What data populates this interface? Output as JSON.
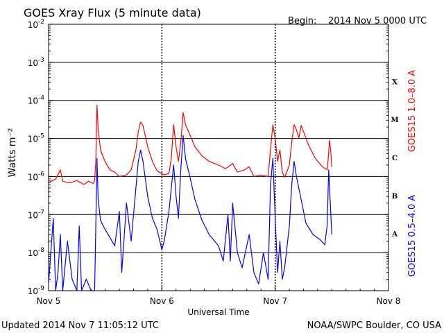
{
  "header": {
    "title": "GOES Xray Flux (5 minute data)",
    "begin_label": "Begin:",
    "begin_value": "2014 Nov 5 0000 UTC"
  },
  "footer": {
    "updated": "Updated 2014 Nov  7 11:05:12 UTC",
    "source": "NOAA/SWPC Boulder, CO USA"
  },
  "colors": {
    "short_channel": "#0000ff",
    "long_channel": "#ff0000",
    "axes": "#000000",
    "background": "#ffffff"
  },
  "chart_data": {
    "type": "line",
    "title": "GOES Xray Flux (5 minute data)",
    "xlabel": "Universal Time",
    "ylabel": "Watts m⁻²",
    "y_scale": "log",
    "ylim": [
      1e-09,
      0.01
    ],
    "xlim": [
      "2014-11-05 00:00",
      "2014-11-08 00:00"
    ],
    "x_ticks": [
      {
        "x": "2014-11-05 00:00",
        "label": "Nov 5"
      },
      {
        "x": "2014-11-06 00:00",
        "label": "Nov 6"
      },
      {
        "x": "2014-11-07 00:00",
        "label": "Nov 7"
      },
      {
        "x": "2014-11-08 00:00",
        "label": "Nov 8"
      }
    ],
    "y_ticks": [
      {
        "value": 1e-09,
        "base": "10",
        "exp": "-9"
      },
      {
        "value": 1e-08,
        "base": "10",
        "exp": "-8"
      },
      {
        "value": 1e-07,
        "base": "10",
        "exp": "-7"
      },
      {
        "value": 1e-06,
        "base": "10",
        "exp": "-6"
      },
      {
        "value": 1e-05,
        "base": "10",
        "exp": "-5"
      },
      {
        "value": 0.0001,
        "base": "10",
        "exp": "-4"
      },
      {
        "value": 0.001,
        "base": "10",
        "exp": "-3"
      },
      {
        "value": 0.01,
        "base": "10",
        "exp": "-2"
      }
    ],
    "flare_classes": [
      {
        "label": "X",
        "from": 0.0001,
        "to": 0.001
      },
      {
        "label": "M",
        "from": 1e-05,
        "to": 0.0001
      },
      {
        "label": "C",
        "from": 1e-06,
        "to": 1e-05
      },
      {
        "label": "B",
        "from": 1e-07,
        "to": 1e-06
      },
      {
        "label": "A",
        "from": 1e-08,
        "to": 1e-07
      }
    ],
    "grid": "horizontal at each decade 1e-8 to 1e-3; dotted vertical at each day boundary",
    "series": [
      {
        "name": "GOES15 1.0–8.0 A",
        "color": "#ff0000",
        "points": [
          [
            "2014-11-05 00:00",
            7e-07
          ],
          [
            "2014-11-05 01:30",
            8.5e-07
          ],
          [
            "2014-11-05 02:30",
            1.5e-06
          ],
          [
            "2014-11-05 03:00",
            7.5e-07
          ],
          [
            "2014-11-05 04:30",
            6.8e-07
          ],
          [
            "2014-11-05 06:00",
            7.8e-07
          ],
          [
            "2014-11-05 07:30",
            6.2e-07
          ],
          [
            "2014-11-05 08:30",
            7.5e-07
          ],
          [
            "2014-11-05 09:30",
            6.5e-07
          ],
          [
            "2014-11-05 09:45",
            8e-07
          ],
          [
            "2014-11-05 10:00",
            2.5e-06
          ],
          [
            "2014-11-05 10:15",
            7.5e-05
          ],
          [
            "2014-11-05 10:30",
            1.8e-05
          ],
          [
            "2014-11-05 11:00",
            5e-06
          ],
          [
            "2014-11-05 12:00",
            2.4e-06
          ],
          [
            "2014-11-05 13:00",
            1.5e-06
          ],
          [
            "2014-11-05 14:00",
            1.3e-06
          ],
          [
            "2014-11-05 15:00",
            1e-06
          ],
          [
            "2014-11-05 16:30",
            1.1e-06
          ],
          [
            "2014-11-05 17:30",
            1.5e-06
          ],
          [
            "2014-11-05 18:30",
            5e-06
          ],
          [
            "2014-11-05 19:00",
            1.5e-05
          ],
          [
            "2014-11-05 19:30",
            2.7e-05
          ],
          [
            "2014-11-05 20:00",
            2.2e-05
          ],
          [
            "2014-11-05 21:00",
            6e-06
          ],
          [
            "2014-11-05 22:00",
            2.5e-06
          ],
          [
            "2014-11-05 23:00",
            1.4e-06
          ],
          [
            "2014-11-06 00:30",
            1.1e-06
          ],
          [
            "2014-11-06 01:30",
            1.2e-06
          ],
          [
            "2014-11-06 02:00",
            3e-06
          ],
          [
            "2014-11-06 02:30",
            2.3e-05
          ],
          [
            "2014-11-06 03:00",
            6e-06
          ],
          [
            "2014-11-06 03:30",
            2.5e-06
          ],
          [
            "2014-11-06 04:00",
            8e-06
          ],
          [
            "2014-11-06 04:30",
            4.8e-05
          ],
          [
            "2014-11-06 05:00",
            2.3e-05
          ],
          [
            "2014-11-06 06:00",
            1.2e-05
          ],
          [
            "2014-11-06 07:00",
            6e-06
          ],
          [
            "2014-11-06 08:30",
            3.5e-06
          ],
          [
            "2014-11-06 10:00",
            2.5e-06
          ],
          [
            "2014-11-06 12:00",
            2e-06
          ],
          [
            "2014-11-06 13:30",
            1.6e-06
          ],
          [
            "2014-11-06 15:00",
            2.2e-06
          ],
          [
            "2014-11-06 16:00",
            1.3e-06
          ],
          [
            "2014-11-06 17:30",
            1.5e-06
          ],
          [
            "2014-11-06 18:30",
            1.8e-06
          ],
          [
            "2014-11-06 19:30",
            1e-06
          ],
          [
            "2014-11-06 21:00",
            1.1e-06
          ],
          [
            "2014-11-06 22:30",
            1e-06
          ],
          [
            "2014-11-06 23:00",
            5e-06
          ],
          [
            "2014-11-06 23:30",
            2.3e-05
          ],
          [
            "2014-11-07 00:00",
            1e-05
          ],
          [
            "2014-11-07 00:30",
            2.5e-06
          ],
          [
            "2014-11-07 01:00",
            5e-06
          ],
          [
            "2014-11-07 01:30",
            1.3e-06
          ],
          [
            "2014-11-07 02:00",
            9.5e-07
          ],
          [
            "2014-11-07 03:00",
            2e-06
          ],
          [
            "2014-11-07 03:30",
            8e-06
          ],
          [
            "2014-11-07 04:00",
            2.3e-05
          ],
          [
            "2014-11-07 04:30",
            1.7e-05
          ],
          [
            "2014-11-07 05:00",
            1e-05
          ],
          [
            "2014-11-07 05:30",
            2.2e-05
          ],
          [
            "2014-11-07 06:00",
            1.5e-05
          ],
          [
            "2014-11-07 07:00",
            7e-06
          ],
          [
            "2014-11-07 08:30",
            3e-06
          ],
          [
            "2014-11-07 10:00",
            1.8e-06
          ],
          [
            "2014-11-07 11:00",
            1.5e-06
          ],
          [
            "2014-11-07 11:15",
            3e-06
          ],
          [
            "2014-11-07 11:30",
            9e-06
          ],
          [
            "2014-11-07 11:45",
            5e-06
          ],
          [
            "2014-11-07 12:00",
            1.8e-06
          ]
        ]
      },
      {
        "name": "GOES15 0.5–4.0 A",
        "color": "#0000ff",
        "points": [
          [
            "2014-11-05 00:00",
            1.5e-09
          ],
          [
            "2014-11-05 01:00",
            8e-08
          ],
          [
            "2014-11-05 01:30",
            1e-09
          ],
          [
            "2014-11-05 02:00",
            3e-09
          ],
          [
            "2014-11-05 02:30",
            3e-08
          ],
          [
            "2014-11-05 03:00",
            1e-09
          ],
          [
            "2014-11-05 04:00",
            2e-08
          ],
          [
            "2014-11-05 05:00",
            2e-09
          ],
          [
            "2014-11-05 06:00",
            1e-09
          ],
          [
            "2014-11-05 06:30",
            5e-08
          ],
          [
            "2014-11-05 07:00",
            1e-09
          ],
          [
            "2014-11-05 08:00",
            2e-09
          ],
          [
            "2014-11-05 09:00",
            1e-09
          ],
          [
            "2014-11-05 09:45",
            1e-09
          ],
          [
            "2014-11-05 10:00",
            5e-08
          ],
          [
            "2014-11-05 10:15",
            3e-06
          ],
          [
            "2014-11-05 10:30",
            2.5e-07
          ],
          [
            "2014-11-05 11:00",
            7e-08
          ],
          [
            "2014-11-05 12:00",
            4e-08
          ],
          [
            "2014-11-05 13:00",
            2.5e-08
          ],
          [
            "2014-11-05 14:00",
            1.5e-08
          ],
          [
            "2014-11-05 15:00",
            1.2e-07
          ],
          [
            "2014-11-05 15:30",
            3e-09
          ],
          [
            "2014-11-05 16:30",
            2e-07
          ],
          [
            "2014-11-05 17:30",
            2e-08
          ],
          [
            "2014-11-05 18:30",
            5e-07
          ],
          [
            "2014-11-05 19:00",
            2.5e-06
          ],
          [
            "2014-11-05 19:30",
            5e-06
          ],
          [
            "2014-11-05 20:00",
            2.5e-06
          ],
          [
            "2014-11-05 21:00",
            3e-07
          ],
          [
            "2014-11-05 22:00",
            8e-08
          ],
          [
            "2014-11-05 23:00",
            4e-08
          ],
          [
            "2014-11-06 00:00",
            1.2e-08
          ],
          [
            "2014-11-06 00:30",
            2e-08
          ],
          [
            "2014-11-06 01:30",
            1.2e-07
          ],
          [
            "2014-11-06 02:30",
            2e-06
          ],
          [
            "2014-11-06 03:00",
            3e-07
          ],
          [
            "2014-11-06 03:30",
            8e-08
          ],
          [
            "2014-11-06 04:00",
            1.5e-06
          ],
          [
            "2014-11-06 04:30",
            1.2e-05
          ],
          [
            "2014-11-06 05:00",
            3e-06
          ],
          [
            "2014-11-06 06:00",
            9e-07
          ],
          [
            "2014-11-06 07:00",
            2.5e-07
          ],
          [
            "2014-11-06 08:30",
            7e-08
          ],
          [
            "2014-11-06 10:00",
            3e-08
          ],
          [
            "2014-11-06 12:00",
            1.5e-08
          ],
          [
            "2014-11-06 13:00",
            6e-09
          ],
          [
            "2014-11-06 14:00",
            1e-07
          ],
          [
            "2014-11-06 14:30",
            6e-09
          ],
          [
            "2014-11-06 15:00",
            2e-07
          ],
          [
            "2014-11-06 16:00",
            1e-08
          ],
          [
            "2014-11-06 17:00",
            4e-09
          ],
          [
            "2014-11-06 18:30",
            3e-08
          ],
          [
            "2014-11-06 19:30",
            3e-09
          ],
          [
            "2014-11-06 20:30",
            1.5e-09
          ],
          [
            "2014-11-06 21:30",
            1e-08
          ],
          [
            "2014-11-06 22:30",
            2e-09
          ],
          [
            "2014-11-06 23:00",
            6e-07
          ],
          [
            "2014-11-06 23:30",
            3e-06
          ],
          [
            "2014-11-07 00:00",
            8e-08
          ],
          [
            "2014-11-07 00:30",
            3e-09
          ],
          [
            "2014-11-07 01:00",
            2e-08
          ],
          [
            "2014-11-07 01:30",
            2e-09
          ],
          [
            "2014-11-07 02:00",
            4e-09
          ],
          [
            "2014-11-07 03:00",
            5e-08
          ],
          [
            "2014-11-07 03:30",
            6e-07
          ],
          [
            "2014-11-07 04:00",
            2.5e-06
          ],
          [
            "2014-11-07 04:30",
            1e-06
          ],
          [
            "2014-11-07 05:30",
            2.5e-07
          ],
          [
            "2014-11-07 06:30",
            6e-08
          ],
          [
            "2014-11-07 08:00",
            3e-08
          ],
          [
            "2014-11-07 09:30",
            2.2e-08
          ],
          [
            "2014-11-07 10:30",
            1.6e-08
          ],
          [
            "2014-11-07 11:00",
            5e-08
          ],
          [
            "2014-11-07 11:20",
            1.5e-06
          ],
          [
            "2014-11-07 11:40",
            2e-07
          ],
          [
            "2014-11-07 12:00",
            3e-08
          ]
        ]
      }
    ]
  }
}
